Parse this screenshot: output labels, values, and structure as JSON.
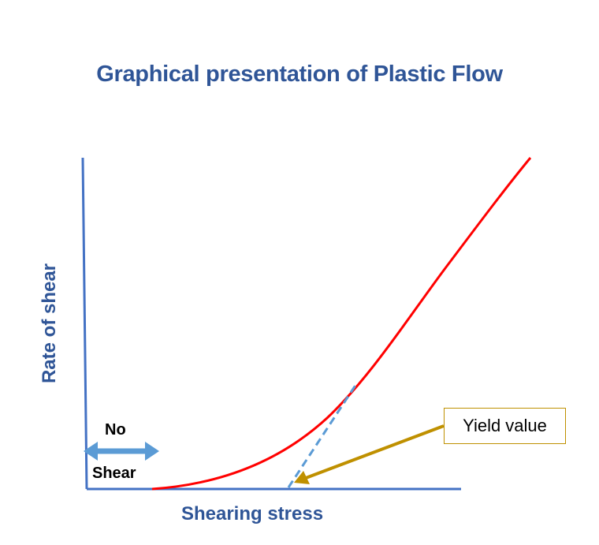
{
  "title": "Graphical presentation of Plastic Flow",
  "axes": {
    "x_label": "Shearing stress",
    "y_label": "Rate of shear"
  },
  "no_shear": {
    "line1": "No",
    "line2": "Shear"
  },
  "yield_callout": {
    "label": "Yield value"
  },
  "colors": {
    "axis": "#4472c4",
    "curve": "#ff0000",
    "tangent": "#5b9bd5",
    "double_arrow": "#5b9bd5",
    "callout_arrow": "#bf9000",
    "title": "#2f5597"
  }
}
